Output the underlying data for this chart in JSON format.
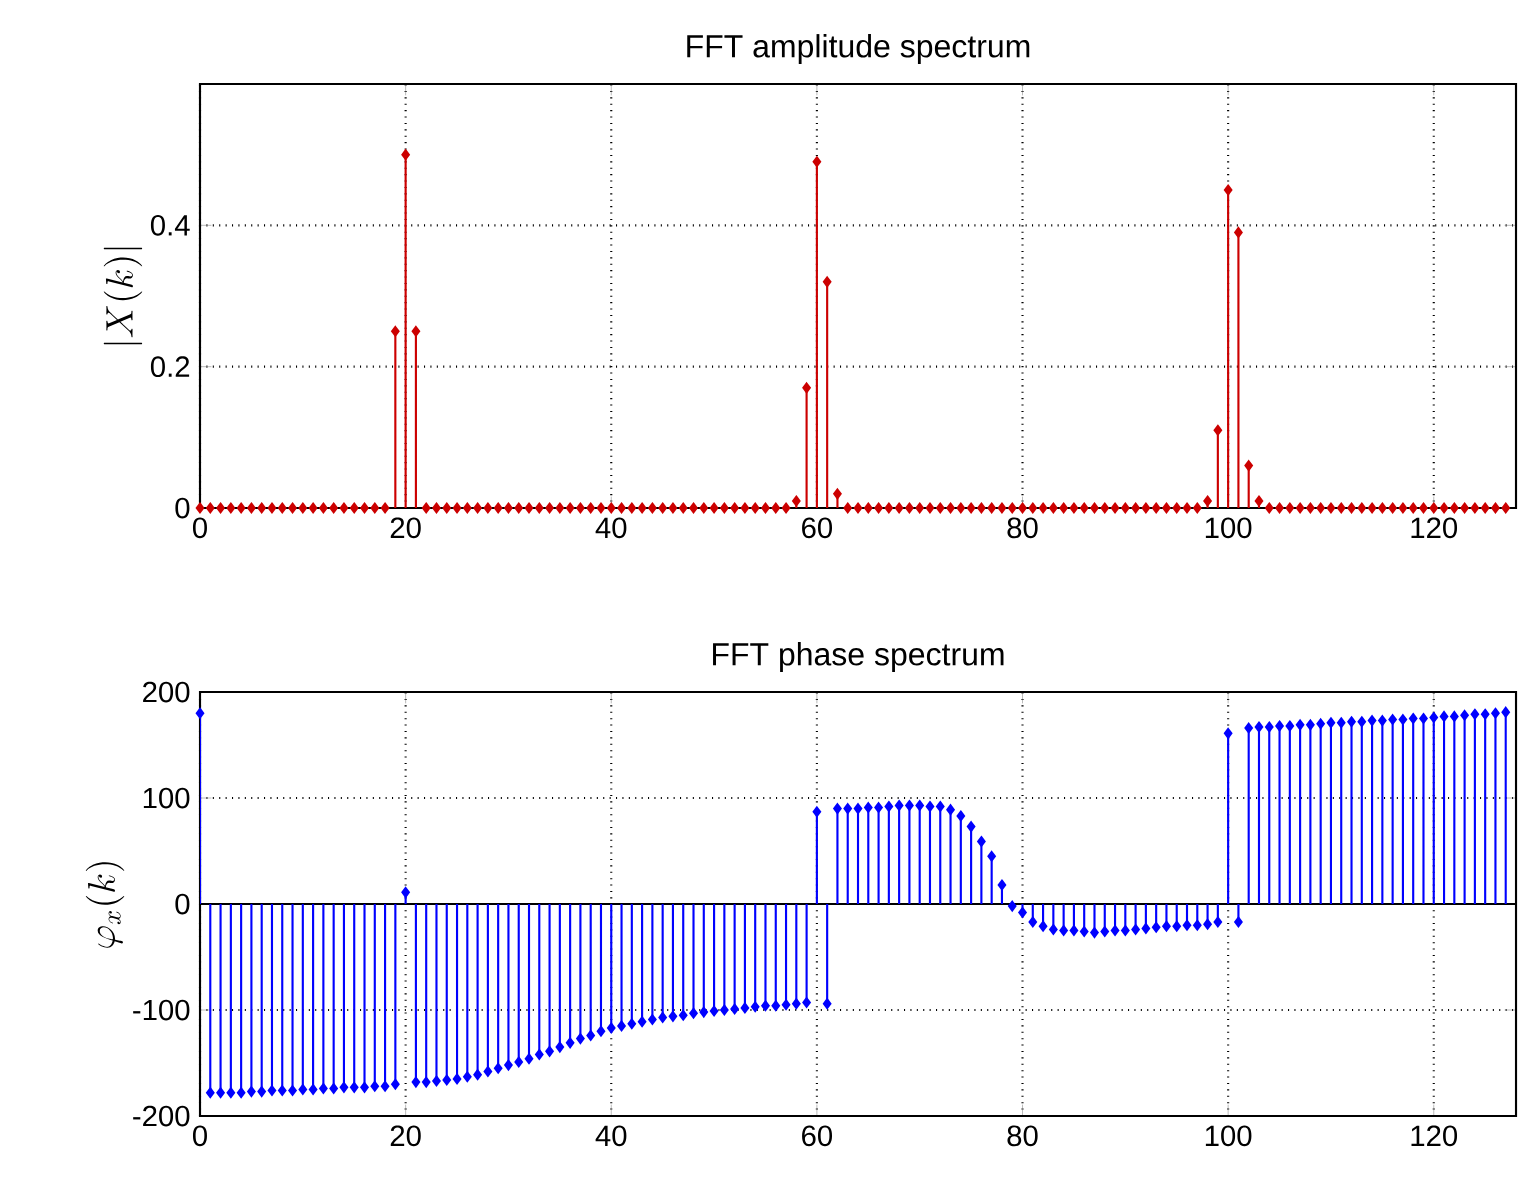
{
  "chart_data": [
    {
      "type": "lollipop",
      "title": "FFT amplitude spectrum",
      "ylabel": "\\left|X(k)\\right|",
      "x": [
        0,
        1,
        2,
        3,
        4,
        5,
        6,
        7,
        8,
        9,
        10,
        11,
        12,
        13,
        14,
        15,
        16,
        17,
        18,
        19,
        20,
        21,
        22,
        23,
        24,
        25,
        26,
        27,
        28,
        29,
        30,
        31,
        32,
        33,
        34,
        35,
        36,
        37,
        38,
        39,
        40,
        41,
        42,
        43,
        44,
        45,
        46,
        47,
        48,
        49,
        50,
        51,
        52,
        53,
        54,
        55,
        56,
        57,
        58,
        59,
        60,
        61,
        62,
        63,
        64,
        65,
        66,
        67,
        68,
        69,
        70,
        71,
        72,
        73,
        74,
        75,
        76,
        77,
        78,
        79,
        80,
        81,
        82,
        83,
        84,
        85,
        86,
        87,
        88,
        89,
        90,
        91,
        92,
        93,
        94,
        95,
        96,
        97,
        98,
        99,
        100,
        101,
        102,
        103,
        104,
        105,
        106,
        107,
        108,
        109,
        110,
        111,
        112,
        113,
        114,
        115,
        116,
        117,
        118,
        119,
        120,
        121,
        122,
        123,
        124,
        125,
        126,
        127
      ],
      "series": [
        {
          "color": "#cc0000",
          "values": [
            0,
            0,
            0,
            0,
            0,
            0,
            0,
            0,
            0,
            0,
            0,
            0,
            0,
            0,
            0,
            0,
            0,
            0,
            0,
            0.25,
            0.5,
            0.25,
            0,
            0,
            0,
            0,
            0,
            0,
            0,
            0,
            0,
            0,
            0,
            0,
            0,
            0,
            0,
            0,
            0,
            0,
            0,
            0,
            0,
            0,
            0,
            0,
            0,
            0,
            0,
            0,
            0,
            0,
            0,
            0,
            0,
            0,
            0,
            0,
            0.01,
            0.17,
            0.49,
            0.32,
            0.02,
            0,
            0,
            0,
            0,
            0,
            0,
            0,
            0,
            0,
            0,
            0,
            0,
            0,
            0,
            0,
            0,
            0,
            0,
            0,
            0,
            0,
            0,
            0,
            0,
            0,
            0,
            0,
            0,
            0,
            0,
            0,
            0,
            0,
            0,
            0,
            0.01,
            0.11,
            0.45,
            0.39,
            0.06,
            0.01,
            0,
            0,
            0,
            0,
            0,
            0,
            0,
            0,
            0,
            0,
            0,
            0,
            0,
            0,
            0,
            0,
            0,
            0,
            0,
            0,
            0,
            0,
            0,
            0
          ]
        }
      ],
      "xlim": [
        0,
        128
      ],
      "xticks": [
        0,
        20,
        40,
        60,
        80,
        100,
        120
      ],
      "ylim": [
        0,
        0.6
      ],
      "yticks": [
        0,
        0.2,
        0.4
      ],
      "grid": true,
      "marker": "diamond"
    },
    {
      "type": "lollipop",
      "title": "FFT phase spectrum",
      "ylabel": "\\varphi_x(k)",
      "x": [
        0,
        1,
        2,
        3,
        4,
        5,
        6,
        7,
        8,
        9,
        10,
        11,
        12,
        13,
        14,
        15,
        16,
        17,
        18,
        19,
        20,
        21,
        22,
        23,
        24,
        25,
        26,
        27,
        28,
        29,
        30,
        31,
        32,
        33,
        34,
        35,
        36,
        37,
        38,
        39,
        40,
        41,
        42,
        43,
        44,
        45,
        46,
        47,
        48,
        49,
        50,
        51,
        52,
        53,
        54,
        55,
        56,
        57,
        58,
        59,
        60,
        61,
        62,
        63,
        64,
        65,
        66,
        67,
        68,
        69,
        70,
        71,
        72,
        73,
        74,
        75,
        76,
        77,
        78,
        79,
        80,
        81,
        82,
        83,
        84,
        85,
        86,
        87,
        88,
        89,
        90,
        91,
        92,
        93,
        94,
        95,
        96,
        97,
        98,
        99,
        100,
        101,
        102,
        103,
        104,
        105,
        106,
        107,
        108,
        109,
        110,
        111,
        112,
        113,
        114,
        115,
        116,
        117,
        118,
        119,
        120,
        121,
        122,
        123,
        124,
        125,
        126,
        127
      ],
      "series": [
        {
          "color": "#0000ff",
          "values": [
            180,
            -178,
            -178,
            -178,
            -178,
            -177,
            -177,
            -176,
            -176,
            -176,
            -175,
            -175,
            -174,
            -174,
            -173,
            -173,
            -173,
            -172,
            -172,
            -170,
            11,
            -168,
            -168,
            -167,
            -166,
            -165,
            -163,
            -161,
            -158,
            -155,
            -152,
            -149,
            -146,
            -142,
            -139,
            -135,
            -131,
            -127,
            -124,
            -120,
            -117,
            -115,
            -113,
            -111,
            -109,
            -107,
            -106,
            -105,
            -103,
            -102,
            -101,
            -100,
            -99,
            -98,
            -97,
            -96,
            -96,
            -95,
            -94,
            -93,
            87,
            -94,
            90,
            90,
            90,
            91,
            91,
            92,
            93,
            93,
            93,
            92,
            92,
            89,
            83,
            73,
            59,
            45,
            18,
            -2,
            -8,
            -17,
            -21,
            -24,
            -25,
            -25,
            -26,
            -27,
            -26,
            -25,
            -25,
            -24,
            -23,
            -22,
            -21,
            -21,
            -20,
            -20,
            -19,
            -17,
            161,
            -17,
            166,
            167,
            167,
            168,
            168,
            169,
            169,
            170,
            171,
            171,
            172,
            172,
            173,
            173,
            174,
            174,
            175,
            175,
            176,
            177,
            177,
            178,
            179,
            179,
            180,
            181
          ]
        }
      ],
      "xlim": [
        0,
        128
      ],
      "xticks": [
        0,
        20,
        40,
        60,
        80,
        100,
        120
      ],
      "ylim": [
        -200,
        200
      ],
      "yticks": [
        -200,
        -100,
        0,
        100,
        200
      ],
      "grid": true,
      "marker": "diamond"
    }
  ]
}
